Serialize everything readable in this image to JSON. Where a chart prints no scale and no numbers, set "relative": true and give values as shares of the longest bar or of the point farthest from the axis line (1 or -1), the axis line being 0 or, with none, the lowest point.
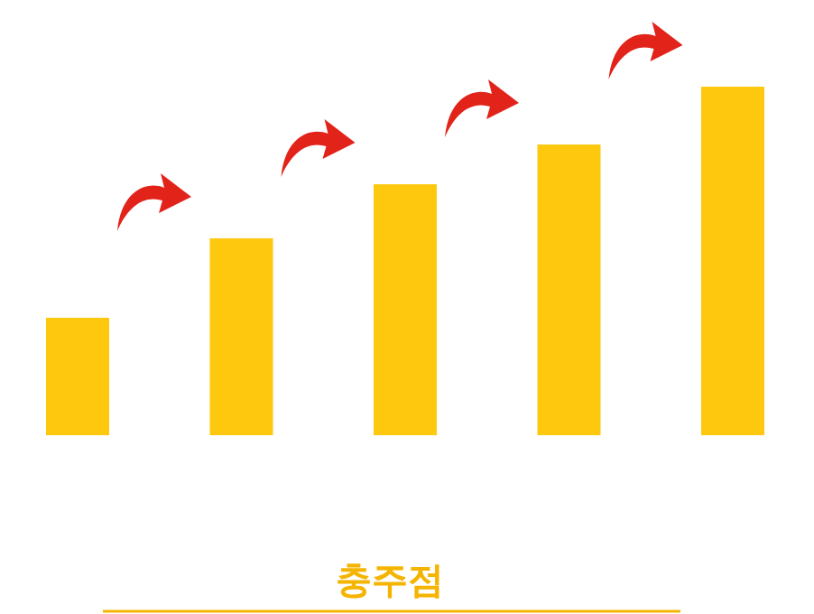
{
  "chart_data": {
    "type": "bar",
    "relative": true,
    "title": "충주점",
    "categories": [
      null,
      null,
      null,
      null,
      null
    ],
    "values": [
      0.337,
      0.565,
      0.72,
      0.834,
      1
    ],
    "color": "#fec80f"
  }
}
